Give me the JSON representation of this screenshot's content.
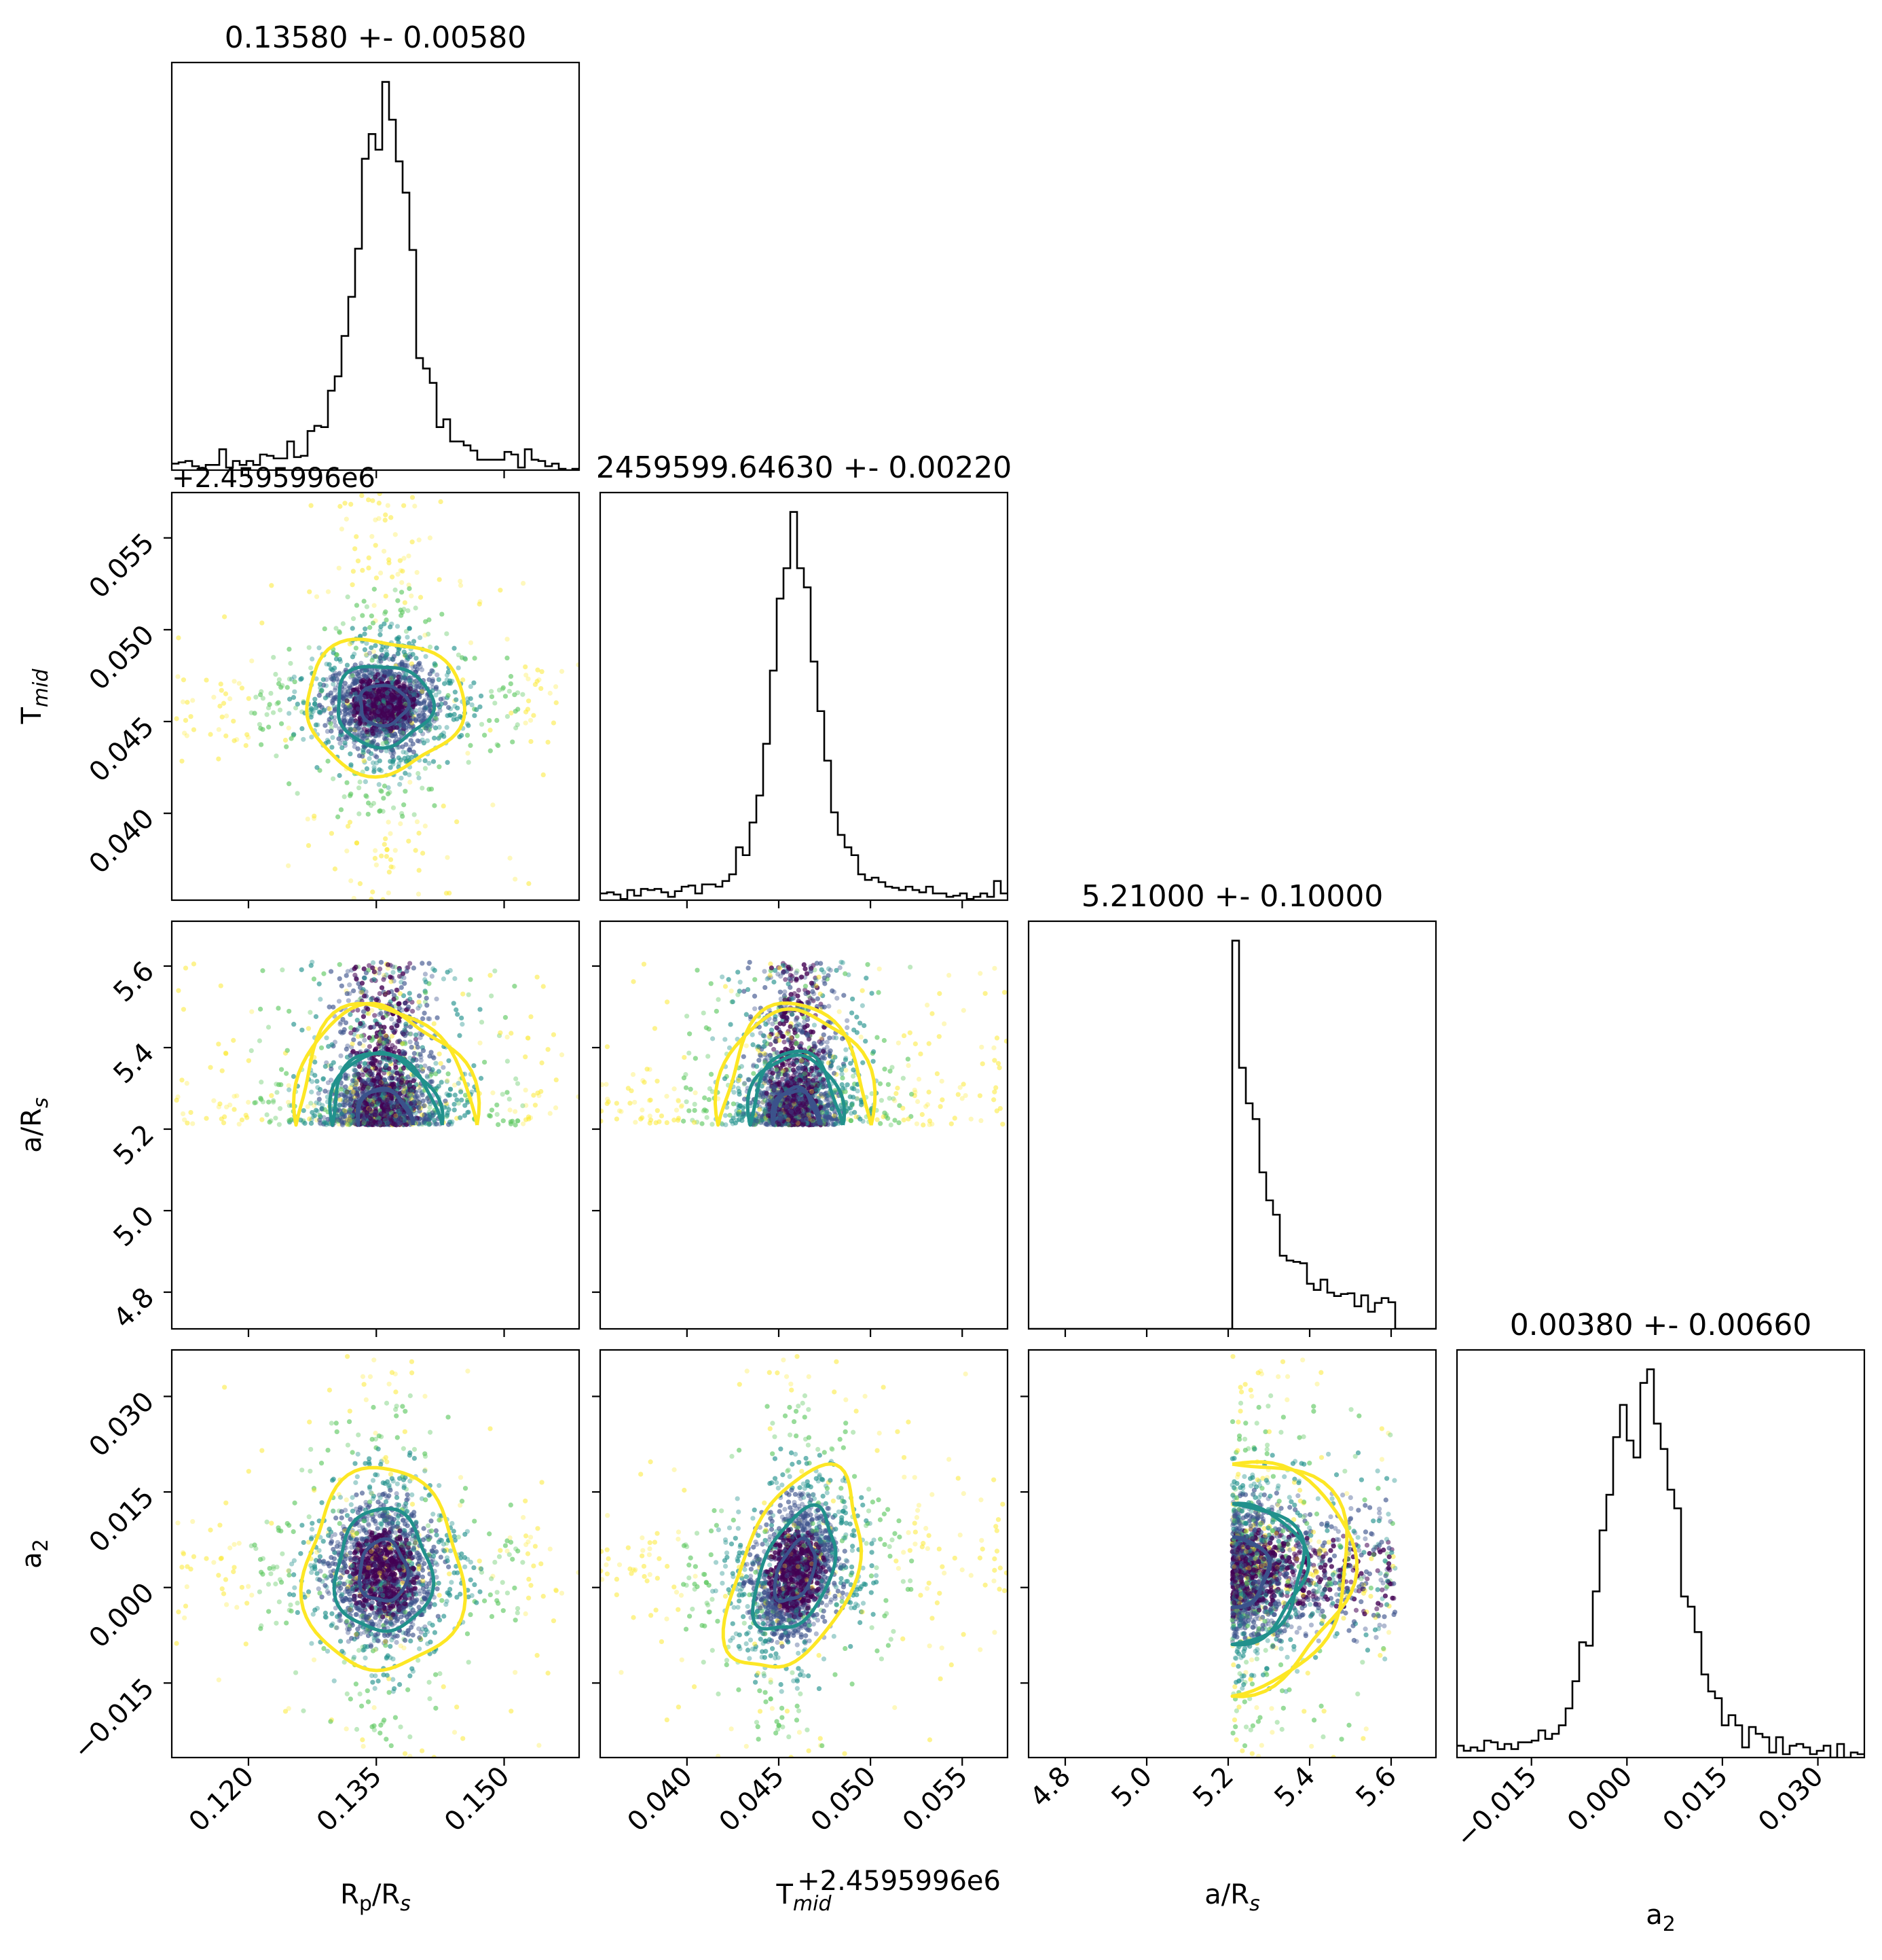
{
  "chart_data": {
    "type": "scatter",
    "subtype": "corner plot",
    "colormap": [
      "#440154",
      "#3b528b",
      "#21918c",
      "#5ec962",
      "#fde725"
    ],
    "parameters": [
      {
        "key": "rprs",
        "label": "R",
        "sub": "p",
        "label2": "/R",
        "sub2": "s",
        "sub_style": "normal",
        "range": [
          0.111,
          0.1588
        ],
        "ticks": [
          0.12,
          0.135,
          0.15
        ],
        "tick_labels": [
          "0.120",
          "0.135",
          "0.150"
        ],
        "offset_text": ""
      },
      {
        "key": "tmid",
        "label": "T",
        "sub": "mid",
        "label2": "",
        "sub2": "",
        "sub_style": "italic",
        "range": [
          0.03527,
          0.05747
        ],
        "ticks": [
          0.04,
          0.045,
          0.05,
          0.055
        ],
        "tick_labels": [
          "0.040",
          "0.045",
          "0.050",
          "0.055"
        ],
        "offset_text": "+2.4595996e6"
      },
      {
        "key": "ars",
        "label": "a/R",
        "sub": "s",
        "label2": "",
        "sub2": "",
        "sub_style": "italic",
        "range": [
          4.71,
          5.71
        ],
        "ticks": [
          4.8,
          5.0,
          5.2,
          5.4,
          5.6
        ],
        "tick_labels": [
          "4.8",
          "5.0",
          "5.2",
          "5.4",
          "5.6"
        ],
        "offset_text": ""
      },
      {
        "key": "a2",
        "label": "a",
        "sub": "2",
        "label2": "",
        "sub2": "",
        "sub_style": "normal",
        "range": [
          -0.0267,
          0.0373
        ],
        "ticks": [
          -0.015,
          0.0,
          0.015,
          0.03
        ],
        "tick_labels": [
          "−0.015",
          "0.000",
          "0.015",
          "0.030"
        ],
        "offset_text": ""
      }
    ],
    "titles": [
      "0.13580 +- 0.00580",
      "2459599.64630 +- 0.00220",
      "5.21000 +- 0.10000",
      "0.00380 +- 0.00660"
    ],
    "distributions": [
      {
        "center": 0.1358,
        "core_width": 0.0028,
        "background": 0.09,
        "tail_slope": -0.02
      },
      {
        "center": 0.0459,
        "core_width": 0.0011,
        "background": 0.1,
        "tail_slope": -0.02
      },
      {
        "lower_bound": 5.21,
        "upper_bound": 5.61,
        "peak": 5.225,
        "decay": 0.07,
        "floor": 0.25
      },
      {
        "center": 0.0025,
        "core_width": 0.0048,
        "background": 0.05,
        "tail_slope": -0.01
      }
    ],
    "histogram": {
      "bins": 60
    },
    "sample_size": 3200,
    "correlations": {
      "tmid_a2": 0.45
    }
  }
}
